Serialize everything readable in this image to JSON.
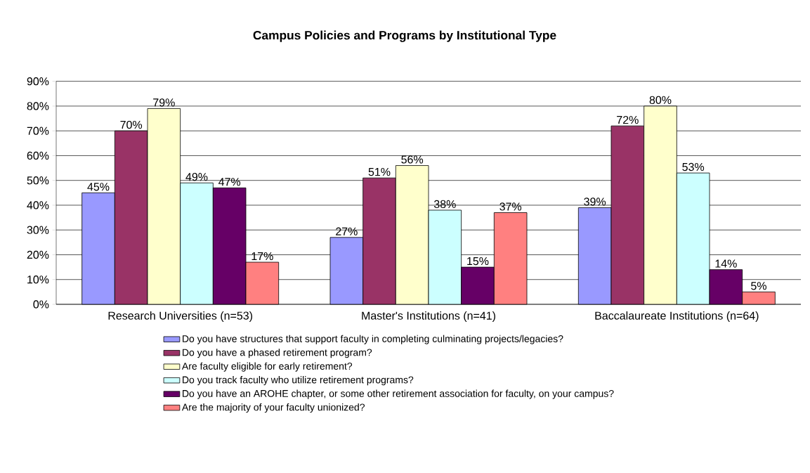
{
  "chart_data": {
    "type": "bar",
    "title": "Campus Policies and Programs by Institutional Type",
    "categories": [
      "Research Universities (n=53)",
      "Master's Institutions (n=41)",
      "Baccalaureate Institutions (n=64)"
    ],
    "series": [
      {
        "name": "Do you have structures that support faculty in completing culminating projects/legacies?",
        "color": "#9999ff",
        "values": [
          45,
          27,
          39
        ],
        "value_labels": [
          "45%",
          "27%",
          "39%"
        ]
      },
      {
        "name": "Do you have a phased retirement program?",
        "color": "#993366",
        "values": [
          70,
          51,
          72
        ],
        "value_labels": [
          "70%",
          "51%",
          "72%"
        ]
      },
      {
        "name": "Are faculty eligible for early retirement?",
        "color": "#ffffcc",
        "values": [
          79,
          56,
          80
        ],
        "value_labels": [
          "79%",
          "56%",
          "80%"
        ]
      },
      {
        "name": "Do you track faculty who utilize retirement programs?",
        "color": "#ccffff",
        "values": [
          49,
          38,
          53
        ],
        "value_labels": [
          "49%",
          "38%",
          "53%"
        ]
      },
      {
        "name": "Do you have an AROHE chapter, or some other retirement association for faculty, on your campus?",
        "color": "#660066",
        "values": [
          47,
          15,
          14
        ],
        "value_labels": [
          "47%",
          "15%",
          "14%"
        ]
      },
      {
        "name": "Are the majority of your faculty unionized?",
        "color": "#ff8080",
        "values": [
          17,
          37,
          5
        ],
        "value_labels": [
          "17%",
          "37%",
          "5%"
        ]
      }
    ],
    "ylim": [
      0,
      90
    ],
    "yticks": [
      {
        "value": 0,
        "label": "0%"
      },
      {
        "value": 10,
        "label": "10%"
      },
      {
        "value": 20,
        "label": "20%"
      },
      {
        "value": 30,
        "label": "30%"
      },
      {
        "value": 40,
        "label": "40%"
      },
      {
        "value": 50,
        "label": "50%"
      },
      {
        "value": 60,
        "label": "60%"
      },
      {
        "value": 70,
        "label": "70%"
      },
      {
        "value": 80,
        "label": "80%"
      },
      {
        "value": 90,
        "label": "90%"
      }
    ],
    "grid": "y",
    "legend": "bottom"
  }
}
